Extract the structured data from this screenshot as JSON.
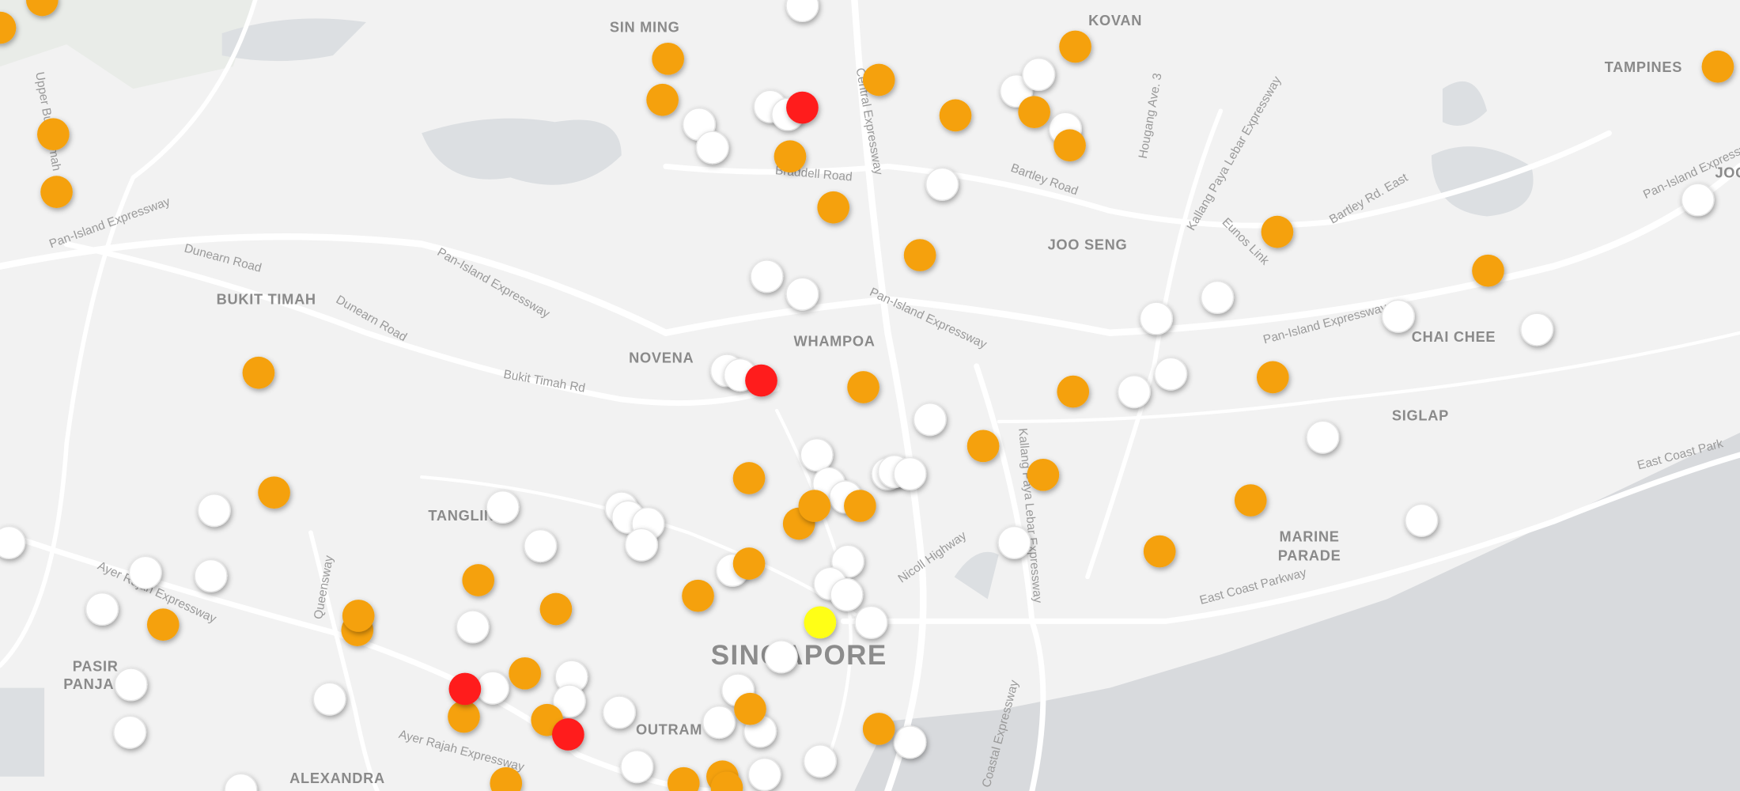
{
  "map": {
    "districts": [
      {
        "label": "SIN MING"
      },
      {
        "label": "KOVAN"
      },
      {
        "label": "TAMPINES"
      },
      {
        "label": "BUKIT TIMAH"
      },
      {
        "label": "JOO SENG"
      },
      {
        "label": "NOVENA"
      },
      {
        "label": "WHAMPOA"
      },
      {
        "label": "CHAI CHEE"
      },
      {
        "label": "SIGLAP"
      },
      {
        "label": "TANGLIN"
      },
      {
        "label": "MARINE"
      },
      {
        "label": "PARADE"
      },
      {
        "label": "PASIR"
      },
      {
        "label": "PANJA"
      },
      {
        "label": "OUTRAM"
      },
      {
        "label": "ALEXANDRA"
      },
      {
        "label": "SINGAPORE"
      },
      {
        "label": "JOO"
      }
    ],
    "roads": [
      {
        "label": "Dunearn Road"
      },
      {
        "label": "Dunearn Road"
      },
      {
        "label": "Pan-Island Expressway"
      },
      {
        "label": "Pan-Island Expressway"
      },
      {
        "label": "Pan-Island Expressway"
      },
      {
        "label": "Pan-Island Expressway"
      },
      {
        "label": "Braddell Road"
      },
      {
        "label": "Bartley Road"
      },
      {
        "label": "Central Expressway"
      },
      {
        "label": "Bukit Timah Rd"
      },
      {
        "label": "East Coast Parkway"
      },
      {
        "label": "Nicoll Highway"
      },
      {
        "label": "Ayer Rajah Expressway"
      },
      {
        "label": "Ayer Rajah Expressway"
      },
      {
        "label": "Queensway"
      },
      {
        "label": "Kallang Paya Lebar Expressway"
      },
      {
        "label": "Bartley Rd. East"
      },
      {
        "label": "Eunos Link"
      },
      {
        "label": "Upper Bukit Timah"
      },
      {
        "label": "Hougang Ave. 3"
      },
      {
        "label": "Marina Coastal Expressway"
      },
      {
        "label": "East Coast Park"
      },
      {
        "label": "Kallang Paya Lebar Expressway"
      },
      {
        "label": "Pan-Island Expressway"
      }
    ]
  }
}
